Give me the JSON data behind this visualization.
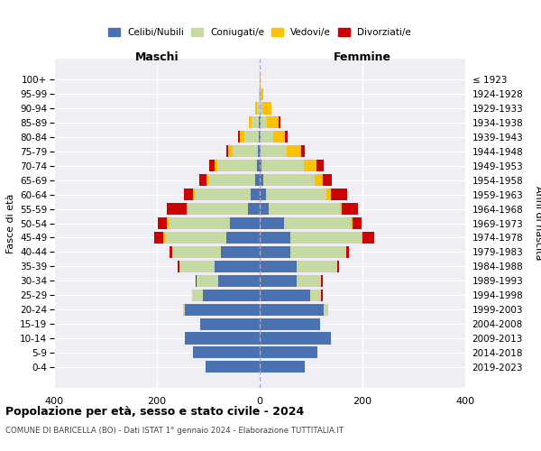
{
  "age_groups": [
    "0-4",
    "5-9",
    "10-14",
    "15-19",
    "20-24",
    "25-29",
    "30-34",
    "35-39",
    "40-44",
    "45-49",
    "50-54",
    "55-59",
    "60-64",
    "65-69",
    "70-74",
    "75-79",
    "80-84",
    "85-89",
    "90-94",
    "95-99",
    "100+"
  ],
  "birth_years": [
    "2019-2023",
    "2014-2018",
    "2009-2013",
    "2004-2008",
    "1999-2003",
    "1994-1998",
    "1989-1993",
    "1984-1988",
    "1979-1983",
    "1974-1978",
    "1969-1973",
    "1964-1968",
    "1959-1963",
    "1954-1958",
    "1949-1953",
    "1944-1948",
    "1939-1943",
    "1934-1938",
    "1929-1933",
    "1924-1928",
    "≤ 1923"
  ],
  "colors": {
    "celibi": "#4a72b0",
    "coniugati": "#c5d9a0",
    "vedovi": "#ffc000",
    "divorziati": "#cc0000"
  },
  "maschi": {
    "celibi": [
      105,
      130,
      145,
      115,
      145,
      110,
      80,
      88,
      75,
      65,
      58,
      22,
      18,
      8,
      5,
      3,
      2,
      2,
      0,
      0,
      0
    ],
    "coniugati": [
      0,
      0,
      0,
      0,
      5,
      22,
      42,
      68,
      95,
      120,
      120,
      118,
      108,
      92,
      78,
      50,
      28,
      14,
      5,
      2,
      0
    ],
    "vedovi": [
      0,
      0,
      0,
      0,
      0,
      0,
      0,
      0,
      0,
      2,
      2,
      2,
      3,
      3,
      5,
      8,
      8,
      5,
      3,
      0,
      0
    ],
    "divorziati": [
      0,
      0,
      0,
      0,
      0,
      0,
      2,
      3,
      6,
      18,
      18,
      38,
      18,
      14,
      10,
      4,
      4,
      0,
      0,
      0,
      0
    ]
  },
  "femmine": {
    "celibi": [
      88,
      112,
      138,
      118,
      125,
      98,
      72,
      72,
      60,
      60,
      48,
      18,
      12,
      7,
      4,
      2,
      2,
      2,
      0,
      0,
      0
    ],
    "coniugati": [
      0,
      0,
      0,
      0,
      8,
      22,
      48,
      78,
      108,
      138,
      130,
      138,
      118,
      100,
      82,
      50,
      25,
      12,
      5,
      2,
      0
    ],
    "vedovi": [
      0,
      0,
      0,
      0,
      0,
      0,
      0,
      0,
      0,
      2,
      2,
      3,
      8,
      15,
      25,
      28,
      22,
      22,
      18,
      5,
      2
    ],
    "divorziati": [
      0,
      0,
      0,
      0,
      0,
      2,
      3,
      5,
      5,
      22,
      18,
      32,
      32,
      18,
      14,
      8,
      5,
      5,
      0,
      0,
      0
    ]
  },
  "title": "Popolazione per età, sesso e stato civile - 2024",
  "subtitle": "COMUNE DI BARICELLA (BO) - Dati ISTAT 1° gennaio 2024 - Elaborazione TUTTITALIA.IT",
  "ylabel_left": "Fasce di età",
  "ylabel_right": "Anni di nascita",
  "xlabel_left": "Maschi",
  "xlabel_right": "Femmine",
  "xlim": 400,
  "bg_color": "#ffffff",
  "plot_bg_color": "#eeeef4",
  "grid_color": "#ffffff"
}
